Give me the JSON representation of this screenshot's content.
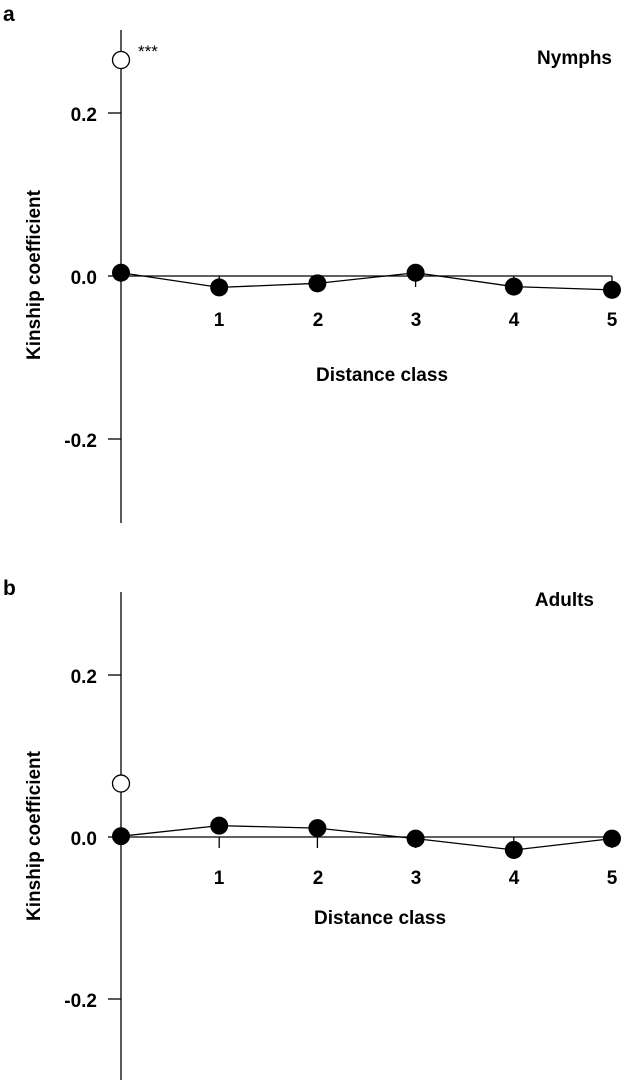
{
  "chart_data": [
    {
      "panel": "a",
      "type": "line",
      "label": "Nymphs",
      "xlabel": "Distance class",
      "ylabel": "Kinship coefficient",
      "ylim": [
        -0.3,
        0.3
      ],
      "yticks": [
        "0.2",
        "0.0",
        "-0.2"
      ],
      "xticks": [
        "1",
        "2",
        "3",
        "4",
        "5"
      ],
      "open_point": {
        "x": 0,
        "y": 0.265,
        "annotation": "***"
      },
      "x": [
        0,
        1,
        2,
        3,
        4,
        5
      ],
      "values": [
        0.004,
        -0.014,
        -0.009,
        0.004,
        -0.013,
        -0.017
      ]
    },
    {
      "panel": "b",
      "type": "line",
      "label": "Adults",
      "xlabel": "Distance class",
      "ylabel": "Kinship coefficient",
      "ylim": [
        -0.3,
        0.3
      ],
      "yticks": [
        "0.2",
        "0.0",
        "-0.2"
      ],
      "xticks": [
        "1",
        "2",
        "3",
        "4",
        "5"
      ],
      "open_point": {
        "x": 0,
        "y": 0.066,
        "annotation": ""
      },
      "x": [
        0,
        1,
        2,
        3,
        4,
        5
      ],
      "values": [
        0.001,
        0.014,
        0.011,
        -0.002,
        -0.016,
        -0.002
      ]
    }
  ]
}
